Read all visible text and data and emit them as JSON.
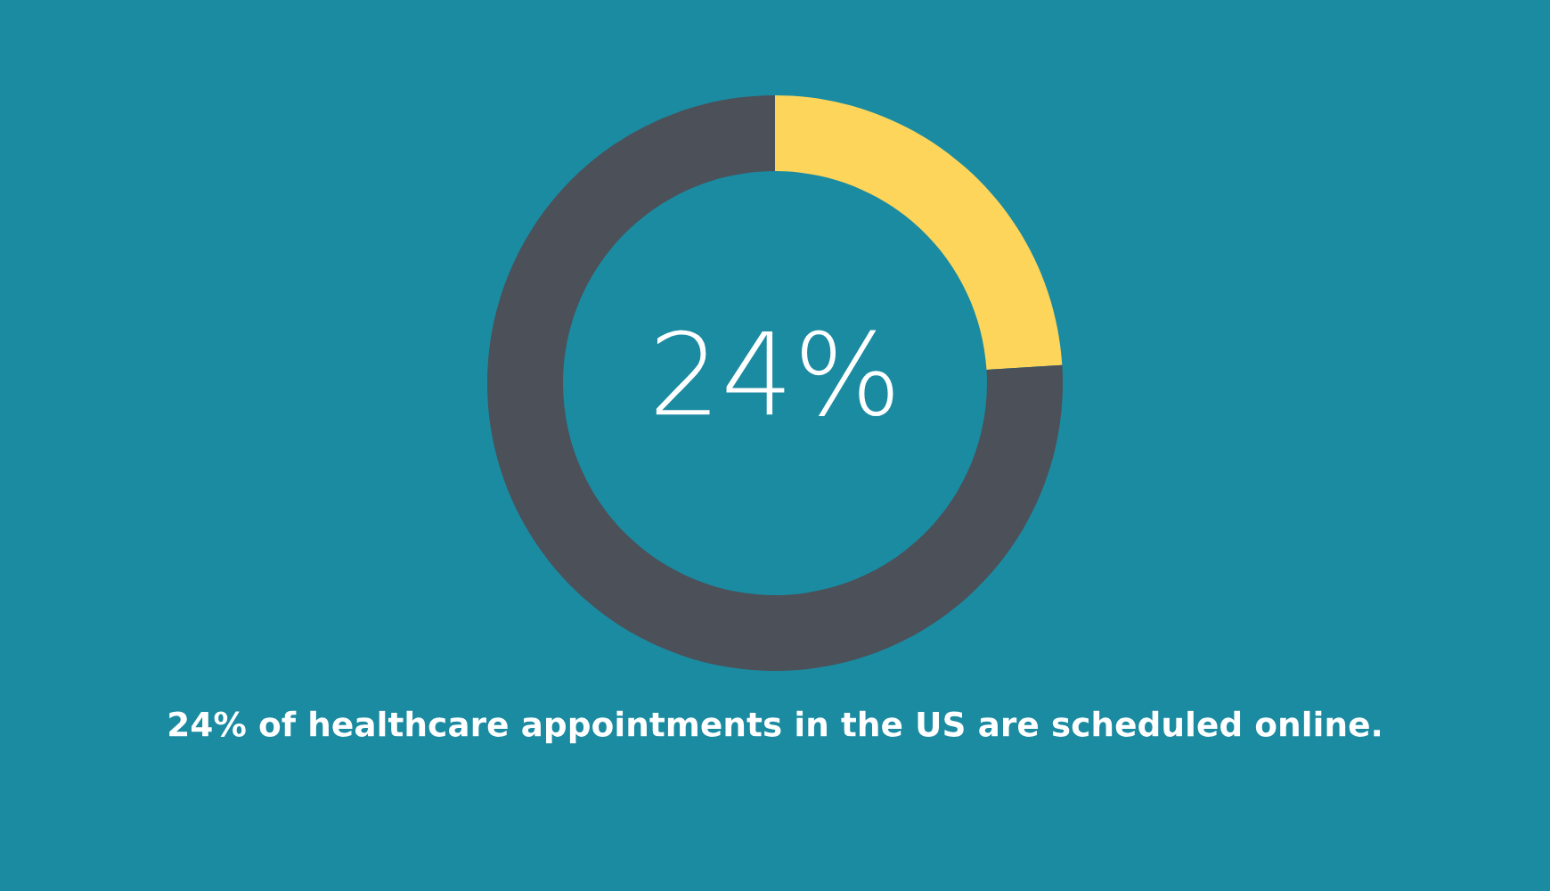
{
  "chart_data": {
    "type": "donut",
    "categories": [
      null,
      null
    ],
    "values": [
      24,
      76
    ],
    "colors": [
      "#fdd55a",
      "#4b5059"
    ],
    "value_labels": [
      "24%",
      null
    ],
    "annotations": [
      "24% of healthcare appointments in the US are scheduled online."
    ]
  }
}
